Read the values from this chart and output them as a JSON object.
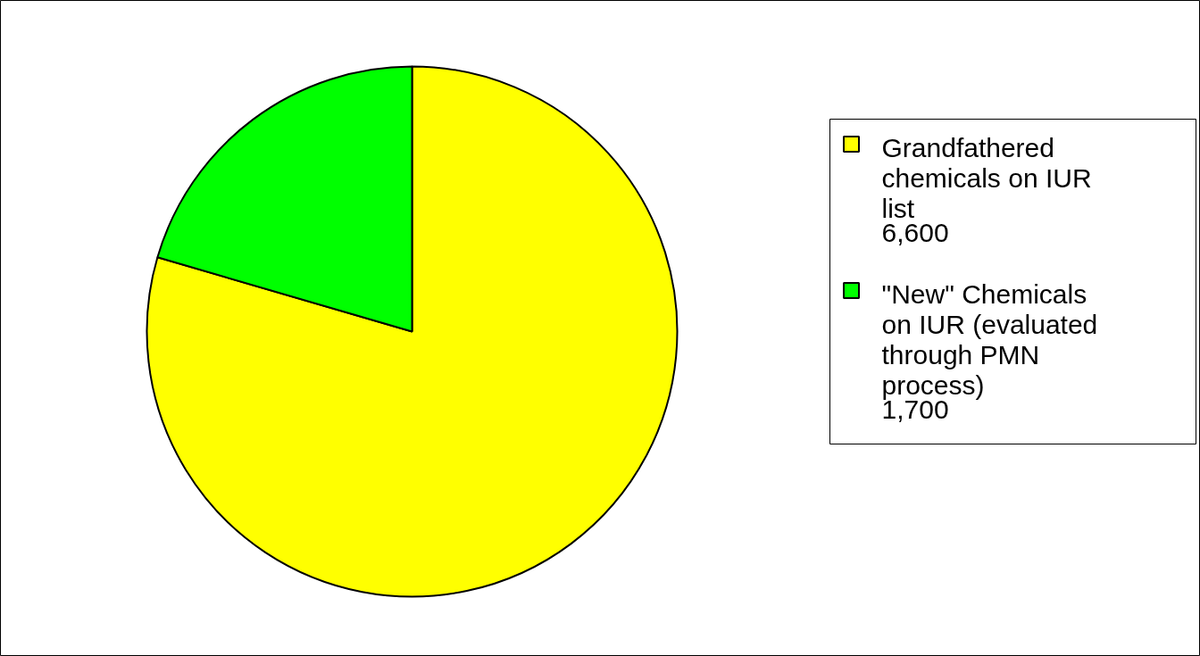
{
  "chart_data": {
    "type": "pie",
    "categories": [
      "Grandfathered chemicals on IUR list",
      "\"New\" Chemicals on IUR (evaluated through PMN process)"
    ],
    "values": [
      6600,
      1700
    ],
    "colors": [
      "#ffff00",
      "#00ff00"
    ],
    "value_labels": [
      "6,600",
      "1,700"
    ],
    "legend": "right"
  }
}
